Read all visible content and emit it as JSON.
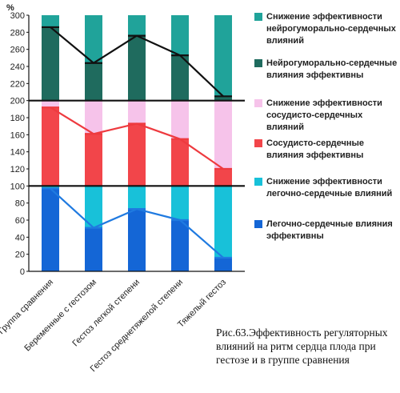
{
  "chart_data": {
    "type": "bar",
    "categories": [
      "Группа сравнения",
      "Беременные с гестозом",
      "Гестоз легкой степени",
      "Гестоз среднетяжелой степени",
      "Тяжелый гестоз"
    ],
    "y_unit_label": "%",
    "y_ticks": [
      0,
      20,
      40,
      60,
      80,
      100,
      120,
      140,
      160,
      180,
      200,
      220,
      240,
      260,
      280,
      300
    ],
    "ylim": [
      0,
      300
    ],
    "grid": false,
    "legend_position": "right",
    "groups": [
      {
        "base": 200,
        "effective_name": "Нейрогуморально-сердечные влияния эффективны",
        "reduced_name": "Снижение эффективности нейрогуморально-сердечных влияний",
        "effective_color": "#1f6b5e",
        "reduced_color": "#20a39a",
        "line_color": "#111111",
        "values": [
          86,
          44,
          76,
          53,
          5
        ]
      },
      {
        "base": 100,
        "effective_name": "Сосудисто-сердечные влияния эффективны",
        "reduced_name": "Снижение эффективности сосудисто-сердечных влияний",
        "effective_color": "#f2454a",
        "reduced_color": "#f6c3ea",
        "line_color": "#ee3a3f",
        "values": [
          92,
          61,
          73,
          55,
          20
        ]
      },
      {
        "base": 0,
        "effective_name": "Легочно-сердечные влияния эффективны",
        "reduced_name": "Снижение эффективности легочно-сердечные влияний",
        "effective_color": "#1466d6",
        "reduced_color": "#18c1d9",
        "line_color": "#1f7ae0",
        "values": [
          97,
          51,
          73,
          60,
          16
        ]
      }
    ]
  },
  "legend": [
    {
      "label": "Снижение эффективности нейрогуморально-сердечных влияний",
      "color": "#20a39a"
    },
    {
      "label": "Нейрогуморально-сердечные влияния эффективны",
      "color": "#1f6b5e"
    },
    {
      "label": "Снижение эффективности сосудисто-сердечных влияний",
      "color": "#f6c3ea"
    },
    {
      "label": "Сосудисто-сердечные влияния эффективны",
      "color": "#f2454a"
    },
    {
      "label": "Снижение эффективности легочно-сердечные влияний",
      "color": "#18c1d9"
    },
    {
      "label": "Легочно-сердечные влияния эффективны",
      "color": "#1466d6"
    }
  ],
  "caption": "Рис.63.Эффективность регуляторных влияний на ритм сердца плода при гестозе и в группе сравнения"
}
